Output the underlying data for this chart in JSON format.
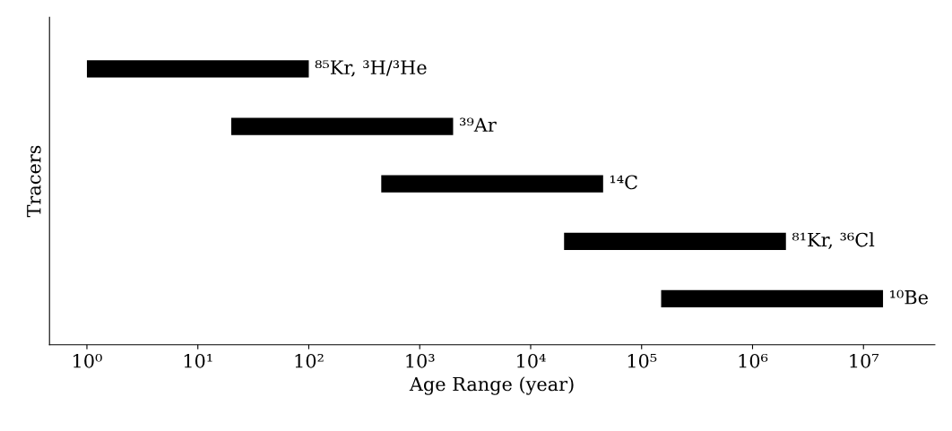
{
  "chart_data": {
    "type": "bar",
    "orientation": "horizontal",
    "log": "x",
    "categories": [
      "⁸⁵Kr, ³H/³He",
      "³⁹Ar",
      "¹⁴C",
      "⁸¹Kr, ³⁶Cl",
      "¹⁰Be"
    ],
    "base": [
      1,
      20,
      450,
      20000,
      150000
    ],
    "values": [
      99,
      1980,
      44550,
      1980000,
      14850000
    ],
    "color": "#000000",
    "xlabel": "Age Range (year)",
    "ylabel": "Tracers",
    "xlim": [
      0.46,
      44000000
    ],
    "xticks": [
      {
        "value": 1,
        "label": "10⁰"
      },
      {
        "value": 10,
        "label": "10¹"
      },
      {
        "value": 100,
        "label": "10²"
      },
      {
        "value": 1000,
        "label": "10³"
      },
      {
        "value": 10000,
        "label": "10⁴"
      },
      {
        "value": 100000,
        "label": "10⁵"
      },
      {
        "value": 1000000,
        "label": "10⁶"
      },
      {
        "value": 10000000,
        "label": "10⁷"
      }
    ],
    "tick_labels": "x",
    "grid": false,
    "legend": false
  }
}
